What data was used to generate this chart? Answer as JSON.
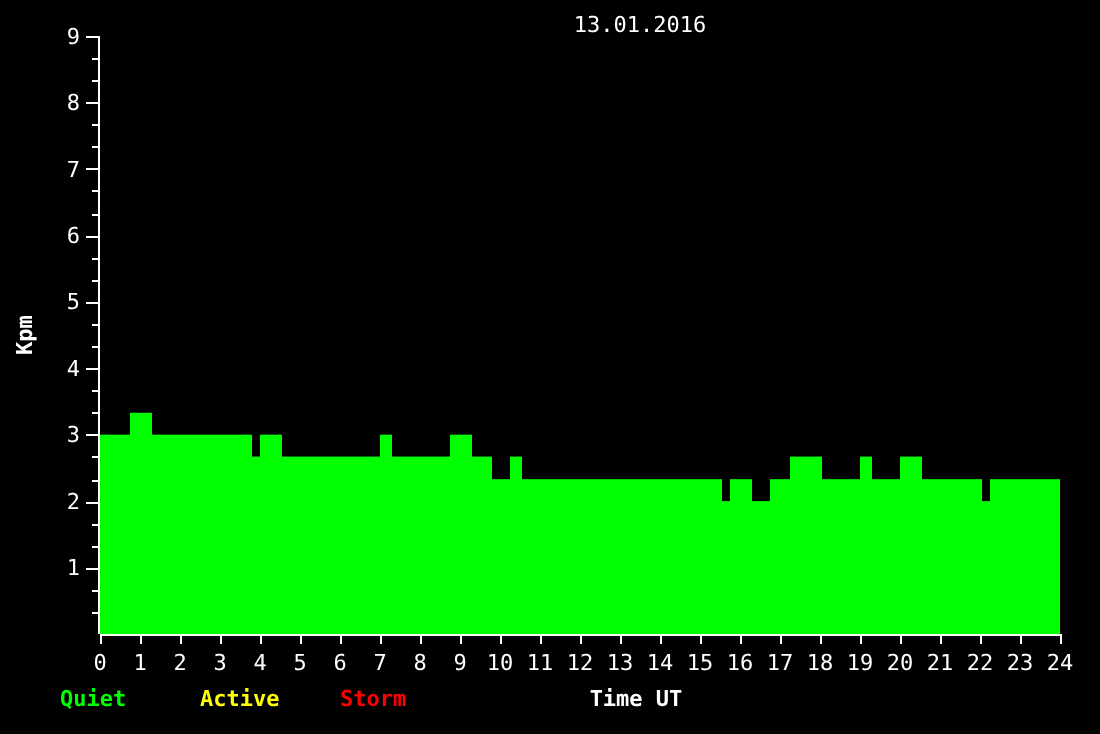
{
  "chart_data": {
    "type": "histogram",
    "title": "13.01.2016",
    "xlabel": "Time UT",
    "ylabel": "Kpm",
    "bins": [
      0,
      0.75,
      1.3,
      3.8,
      4.0,
      4.55,
      7.0,
      7.3,
      8.75,
      9.3,
      9.8,
      10.25,
      10.55,
      15.55,
      15.75,
      16.3,
      16.75,
      17.25,
      18.05,
      19.0,
      19.3,
      20.0,
      20.55,
      22.05,
      22.25,
      24
    ],
    "series": [
      {
        "name": "Quiet",
        "color": "#00ff00",
        "values": [
          3,
          3.33,
          3,
          2.67,
          3,
          2.67,
          3,
          2.67,
          3,
          2.67,
          2.33,
          2.67,
          2.33,
          2,
          2.33,
          2,
          2.33,
          2.67,
          2.33,
          2.67,
          2.33,
          2.67,
          2.33,
          2,
          2.33
        ]
      }
    ],
    "annotations": [
      "Active",
      "Storm"
    ],
    "xlim": [
      0,
      24
    ],
    "xticks": [
      0,
      1,
      2,
      3,
      4,
      5,
      6,
      7,
      8,
      9,
      10,
      11,
      12,
      13,
      14,
      15,
      16,
      17,
      18,
      19,
      20,
      21,
      22,
      23,
      24
    ],
    "ylim": [
      0,
      9
    ],
    "yticks": [
      {
        "value": 0.33,
        "label": null
      },
      {
        "value": 0.67,
        "label": null
      },
      1,
      {
        "value": 1.33,
        "label": null
      },
      {
        "value": 1.67,
        "label": null
      },
      2,
      {
        "value": 2.33,
        "label": null
      },
      {
        "value": 2.67,
        "label": null
      },
      3,
      {
        "value": 3.33,
        "label": null
      },
      {
        "value": 3.67,
        "label": null
      },
      4,
      {
        "value": 4.33,
        "label": null
      },
      {
        "value": 4.67,
        "label": null
      },
      5,
      {
        "value": 5.33,
        "label": null
      },
      {
        "value": 5.67,
        "label": null
      },
      6,
      {
        "value": 6.33,
        "label": null
      },
      {
        "value": 6.67,
        "label": null
      },
      7,
      {
        "value": 7.33,
        "label": null
      },
      {
        "value": 7.67,
        "label": null
      },
      8,
      {
        "value": 8.33,
        "label": null
      },
      {
        "value": 8.67,
        "label": null
      },
      9
    ]
  }
}
